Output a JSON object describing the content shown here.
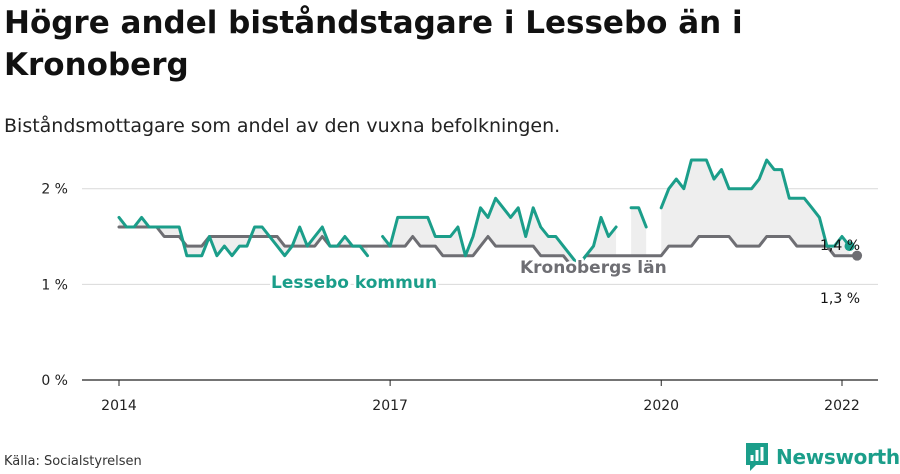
{
  "header": {
    "title": "Högre andel biståndstagare i Lessebo än i Kronoberg",
    "subtitle": "Biståndsmottagare som andel av den vuxna befolkningen."
  },
  "footer": {
    "source": "Källa: Socialstyrelsen",
    "brand": "Newsworthy"
  },
  "colors": {
    "lessebo": "#1b9e8a",
    "kronoberg": "#6e6e73",
    "band": "#eeeeee",
    "grid": "#d9d9d9"
  },
  "chart_data": {
    "type": "line",
    "ylim": [
      0,
      2.3
    ],
    "yticks": [
      0,
      1,
      2
    ],
    "ytick_labels": [
      "0 %",
      "1 %",
      "2 %"
    ],
    "xticks": [
      2014,
      2017,
      2020,
      2022
    ],
    "xtick_labels": [
      "2014",
      "2017",
      "2020",
      "2022"
    ],
    "grid": true,
    "x_start": 2014.0,
    "x_step": 0.0833333,
    "series": [
      {
        "name": "Lessebo kommun",
        "end_label": "1,4 %",
        "values": [
          1.7,
          1.6,
          1.6,
          1.7,
          1.6,
          1.6,
          1.6,
          1.6,
          1.6,
          1.3,
          1.3,
          1.3,
          1.5,
          1.3,
          1.4,
          1.3,
          1.4,
          1.4,
          1.6,
          1.6,
          1.5,
          1.4,
          1.3,
          1.4,
          1.6,
          1.4,
          1.5,
          1.6,
          1.4,
          1.4,
          1.5,
          1.4,
          1.4,
          1.3,
          null,
          1.5,
          1.4,
          1.7,
          1.7,
          1.7,
          1.7,
          1.7,
          1.5,
          1.5,
          1.5,
          1.6,
          1.3,
          1.5,
          1.8,
          1.7,
          1.9,
          1.8,
          1.7,
          1.8,
          1.5,
          1.8,
          1.6,
          1.5,
          1.5,
          1.4,
          1.3,
          1.2,
          1.3,
          1.4,
          1.7,
          1.5,
          1.6,
          null,
          1.8,
          1.8,
          1.6,
          null,
          1.8,
          2.0,
          2.1,
          2.0,
          2.3,
          2.3,
          2.3,
          2.1,
          2.2,
          2.0,
          2.0,
          2.0,
          2.0,
          2.1,
          2.3,
          2.2,
          2.2,
          1.9,
          1.9,
          1.9,
          1.8,
          1.7,
          1.4,
          1.4,
          1.5,
          1.4
        ]
      },
      {
        "name": "Kronobergs län",
        "end_label": "1,3 %",
        "values": [
          1.6,
          1.6,
          1.6,
          1.6,
          1.6,
          1.6,
          1.5,
          1.5,
          1.5,
          1.4,
          1.4,
          1.4,
          1.5,
          1.5,
          1.5,
          1.5,
          1.5,
          1.5,
          1.5,
          1.5,
          1.5,
          1.5,
          1.4,
          1.4,
          1.4,
          1.4,
          1.4,
          1.5,
          1.4,
          1.4,
          1.4,
          1.4,
          1.4,
          1.4,
          1.4,
          1.4,
          1.4,
          1.4,
          1.4,
          1.5,
          1.4,
          1.4,
          1.4,
          1.3,
          1.3,
          1.3,
          1.3,
          1.3,
          1.4,
          1.5,
          1.4,
          1.4,
          1.4,
          1.4,
          1.4,
          1.4,
          1.3,
          1.3,
          1.3,
          1.3,
          1.2,
          1.2,
          1.3,
          1.3,
          1.3,
          1.3,
          1.3,
          1.3,
          1.3,
          1.3,
          1.3,
          1.3,
          1.3,
          1.4,
          1.4,
          1.4,
          1.4,
          1.5,
          1.5,
          1.5,
          1.5,
          1.5,
          1.4,
          1.4,
          1.4,
          1.4,
          1.5,
          1.5,
          1.5,
          1.5,
          1.4,
          1.4,
          1.4,
          1.4,
          1.4,
          1.3,
          1.3,
          1.3,
          1.3
        ]
      }
    ]
  }
}
